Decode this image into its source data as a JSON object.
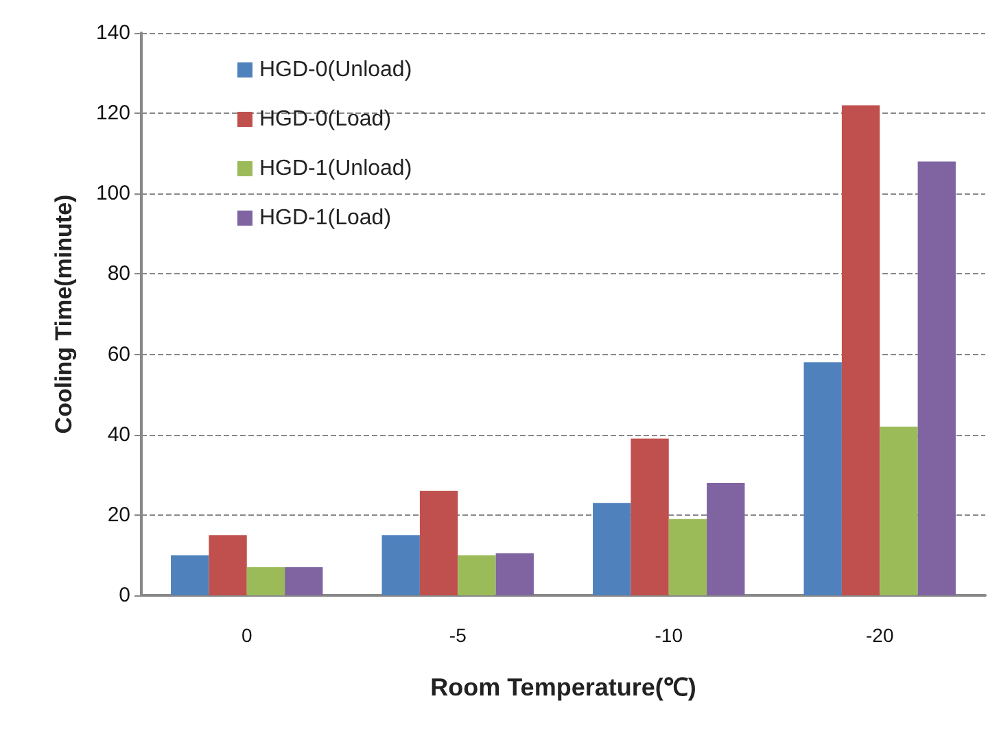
{
  "chart_data": {
    "type": "bar",
    "xlabel": "Room Temperature(℃)",
    "ylabel": "Cooling Time(minute)",
    "categories": [
      "0",
      "-5",
      "-10",
      "-20"
    ],
    "series": [
      {
        "name": "HGD-0(Unload)",
        "color": "#4f81bd",
        "values": [
          10,
          15,
          23,
          58
        ]
      },
      {
        "name": "HGD-0(Load)",
        "color": "#c0504d",
        "values": [
          15,
          26,
          39,
          122
        ]
      },
      {
        "name": "HGD-1(Unload)",
        "color": "#9bbb59",
        "values": [
          7,
          10,
          19,
          42
        ]
      },
      {
        "name": "HGD-1(Load)",
        "color": "#8064a2",
        "values": [
          7,
          10.5,
          28,
          108
        ]
      }
    ],
    "ylim": [
      0,
      140
    ],
    "yticks": [
      0,
      20,
      40,
      60,
      80,
      100,
      120,
      140
    ],
    "grid": "y",
    "legend": "top left"
  }
}
